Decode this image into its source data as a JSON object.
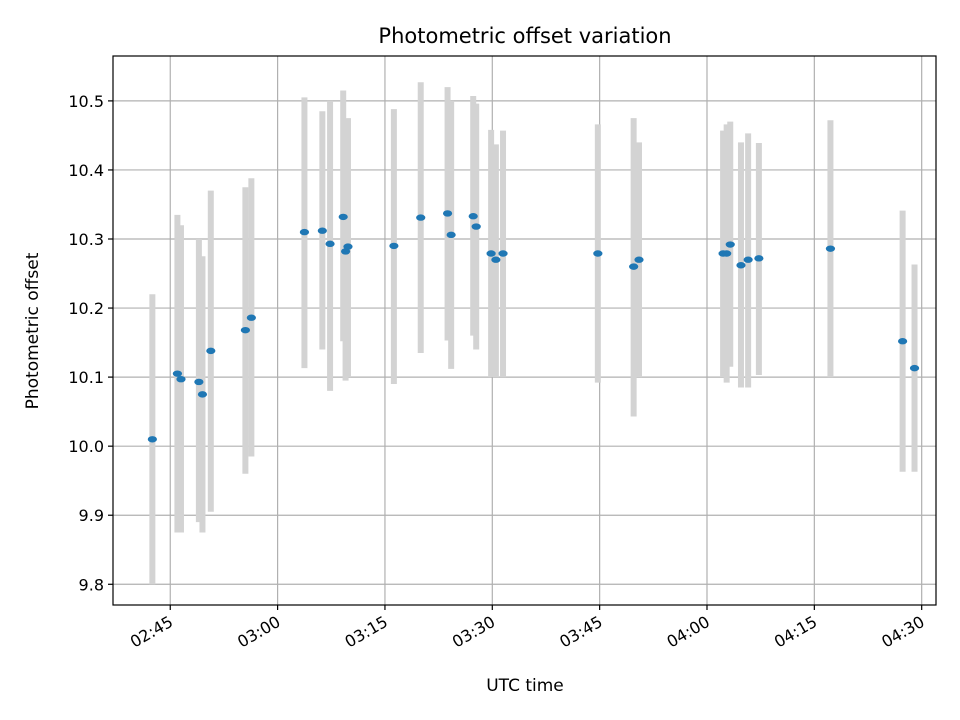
{
  "chart_data": {
    "type": "scatter",
    "title": "Photometric offset variation",
    "xlabel": "UTC time",
    "ylabel": "Photometric offset",
    "xlim": [
      "02:37",
      "04:32"
    ],
    "ylim": [
      9.77,
      10.565
    ],
    "x_ticks": [
      "02:45",
      "03:00",
      "03:15",
      "03:30",
      "03:45",
      "04:00",
      "04:15",
      "04:30"
    ],
    "y_ticks": [
      9.8,
      9.9,
      10.0,
      10.1,
      10.2,
      10.3,
      10.4,
      10.5
    ],
    "grid": true,
    "colors": {
      "point": "#1f77b4",
      "errorbar": "#d3d3d3",
      "grid": "#b0b0b0"
    },
    "points": [
      {
        "t": "02:42:30",
        "y": 10.01,
        "err_low": 9.8,
        "err_high": 10.22
      },
      {
        "t": "02:46:00",
        "y": 10.105,
        "err_low": 9.875,
        "err_high": 10.335
      },
      {
        "t": "02:46:30",
        "y": 10.097,
        "err_low": 9.875,
        "err_high": 10.32
      },
      {
        "t": "02:49:00",
        "y": 10.093,
        "err_low": 9.89,
        "err_high": 10.3
      },
      {
        "t": "02:49:30",
        "y": 10.075,
        "err_low": 9.875,
        "err_high": 10.275
      },
      {
        "t": "02:50:40",
        "y": 10.138,
        "err_low": 9.905,
        "err_high": 10.37
      },
      {
        "t": "02:55:30",
        "y": 10.168,
        "err_low": 9.96,
        "err_high": 10.375
      },
      {
        "t": "02:56:20",
        "y": 10.186,
        "err_low": 9.985,
        "err_high": 10.388
      },
      {
        "t": "03:03:45",
        "y": 10.31,
        "err_low": 10.113,
        "err_high": 10.505
      },
      {
        "t": "03:06:15",
        "y": 10.312,
        "err_low": 10.14,
        "err_high": 10.485
      },
      {
        "t": "03:07:20",
        "y": 10.293,
        "err_low": 10.08,
        "err_high": 10.5
      },
      {
        "t": "03:09:10",
        "y": 10.332,
        "err_low": 10.152,
        "err_high": 10.515
      },
      {
        "t": "03:09:30",
        "y": 10.282,
        "err_low": 10.095,
        "err_high": 10.47
      },
      {
        "t": "03:09:50",
        "y": 10.289,
        "err_low": 10.1,
        "err_high": 10.475
      },
      {
        "t": "03:16:15",
        "y": 10.29,
        "err_low": 10.09,
        "err_high": 10.488
      },
      {
        "t": "03:20:00",
        "y": 10.331,
        "err_low": 10.135,
        "err_high": 10.527
      },
      {
        "t": "03:23:45",
        "y": 10.337,
        "err_low": 10.153,
        "err_high": 10.52
      },
      {
        "t": "03:24:15",
        "y": 10.306,
        "err_low": 10.112,
        "err_high": 10.5
      },
      {
        "t": "03:27:20",
        "y": 10.333,
        "err_low": 10.16,
        "err_high": 10.507
      },
      {
        "t": "03:27:45",
        "y": 10.318,
        "err_low": 10.14,
        "err_high": 10.496
      },
      {
        "t": "03:29:50",
        "y": 10.279,
        "err_low": 10.1,
        "err_high": 10.458
      },
      {
        "t": "03:30:30",
        "y": 10.27,
        "err_low": 10.1,
        "err_high": 10.437
      },
      {
        "t": "03:31:30",
        "y": 10.279,
        "err_low": 10.1,
        "err_high": 10.457
      },
      {
        "t": "03:44:45",
        "y": 10.279,
        "err_low": 10.092,
        "err_high": 10.466
      },
      {
        "t": "03:49:45",
        "y": 10.26,
        "err_low": 10.043,
        "err_high": 10.475
      },
      {
        "t": "03:50:30",
        "y": 10.27,
        "err_low": 10.1,
        "err_high": 10.44
      },
      {
        "t": "04:02:15",
        "y": 10.279,
        "err_low": 10.1,
        "err_high": 10.457
      },
      {
        "t": "04:02:45",
        "y": 10.279,
        "err_low": 10.092,
        "err_high": 10.466
      },
      {
        "t": "04:03:15",
        "y": 10.292,
        "err_low": 10.115,
        "err_high": 10.47
      },
      {
        "t": "04:04:45",
        "y": 10.262,
        "err_low": 10.085,
        "err_high": 10.44
      },
      {
        "t": "04:05:45",
        "y": 10.27,
        "err_low": 10.085,
        "err_high": 10.453
      },
      {
        "t": "04:07:15",
        "y": 10.272,
        "err_low": 10.103,
        "err_high": 10.439
      },
      {
        "t": "04:17:15",
        "y": 10.286,
        "err_low": 10.1,
        "err_high": 10.472
      },
      {
        "t": "04:27:20",
        "y": 10.152,
        "err_low": 9.963,
        "err_high": 10.341
      },
      {
        "t": "04:29:00",
        "y": 10.113,
        "err_low": 9.963,
        "err_high": 10.263
      }
    ]
  }
}
